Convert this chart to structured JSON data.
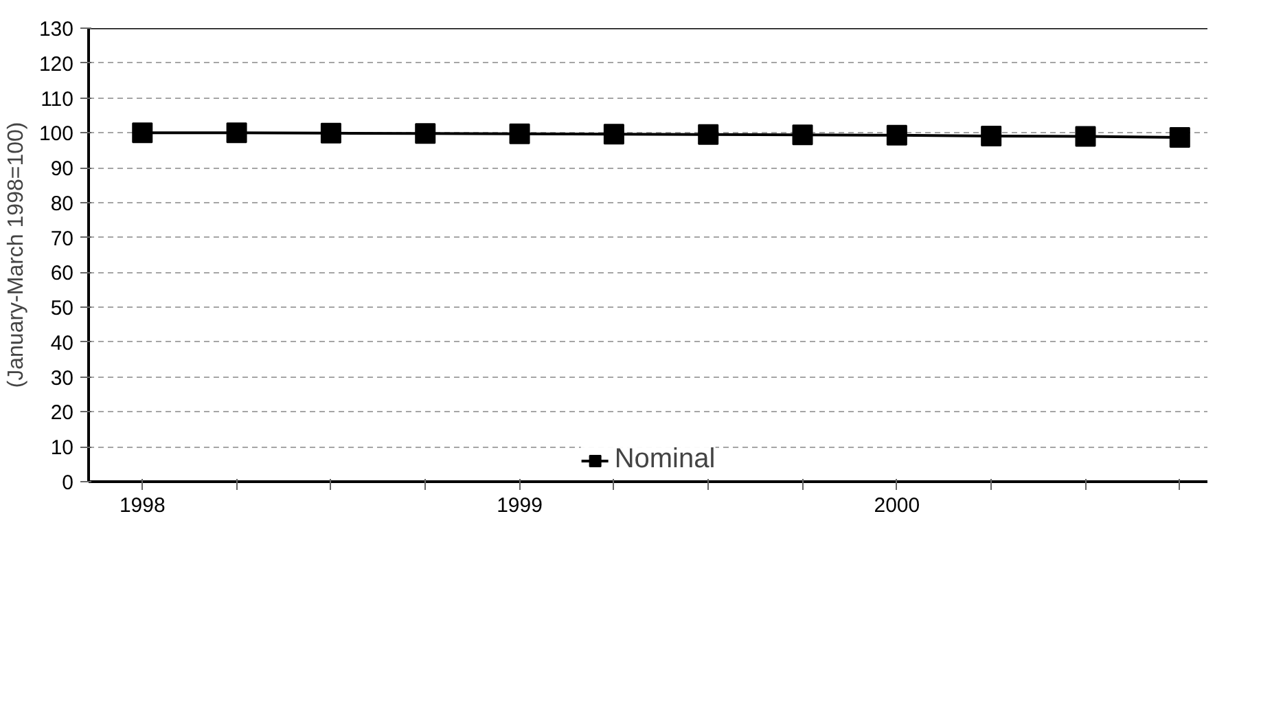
{
  "chart_data": {
    "type": "line",
    "ylabel": "(January-March 1998=100)",
    "categories": [
      "1998",
      null,
      null,
      null,
      "1999",
      null,
      null,
      null,
      "2000",
      null,
      null,
      null
    ],
    "series": [
      {
        "name": "Nominal",
        "color": "#000000",
        "values": [
          100,
          100,
          99.9,
          99.8,
          99.7,
          99.6,
          99.5,
          99.4,
          99.3,
          99.1,
          99.0,
          98.7
        ]
      }
    ],
    "ylim": [
      0,
      130
    ],
    "yticks": [
      0,
      10,
      20,
      30,
      40,
      50,
      60,
      70,
      80,
      90,
      100,
      110,
      120,
      130
    ],
    "grid": "y",
    "legend": "bottom",
    "marker": "square",
    "line_style": "solid"
  }
}
